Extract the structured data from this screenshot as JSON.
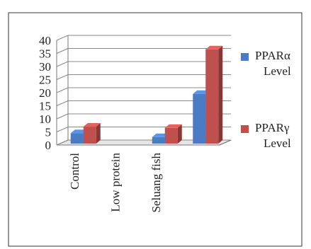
{
  "chart_data": {
    "type": "bar",
    "title": "",
    "xlabel": "",
    "ylabel": "",
    "ylim": [
      0,
      40
    ],
    "yticks": [
      0,
      5,
      10,
      15,
      20,
      25,
      30,
      35,
      40
    ],
    "grid": true,
    "legend_position": "right",
    "categories": [
      "Control",
      "Low protein",
      "Seluang fish",
      ""
    ],
    "series": [
      {
        "name": "PPARα Level",
        "values": [
          4,
          null,
          2.5,
          19
        ],
        "color": "#4a7cc4"
      },
      {
        "name": "PPARγ Level",
        "values": [
          6.5,
          null,
          6,
          36
        ],
        "color": "#c0504d"
      }
    ],
    "legend": [
      {
        "line1": "PPARα",
        "line2": "Level"
      },
      {
        "line1": "PPARγ",
        "line2": "Level"
      }
    ]
  }
}
